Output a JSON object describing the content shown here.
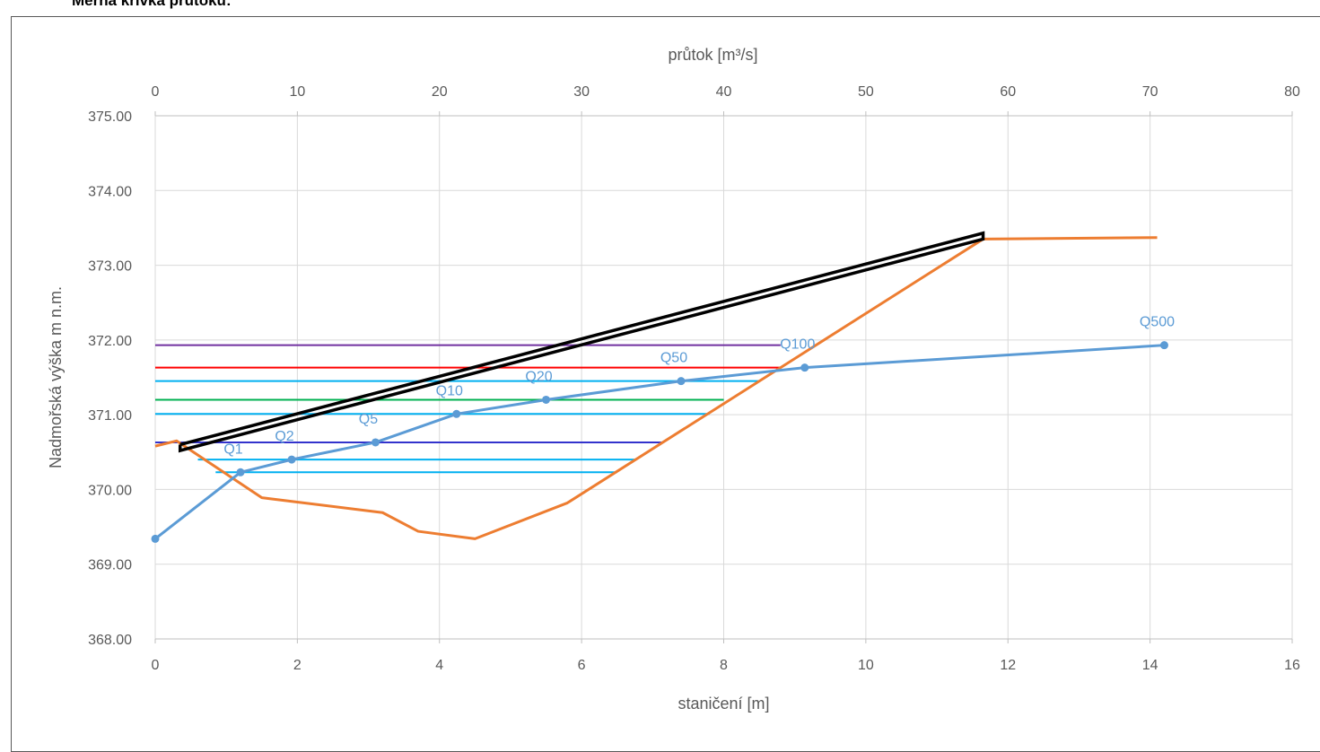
{
  "title": "Měrná křivka průtoku:",
  "chart_data": {
    "type": "line",
    "xlabel_bottom": "staničení [m]",
    "xlabel_top": "průtok [m³/s]",
    "ylabel": "Nadmořská výška m n.m.",
    "xlim_bottom": [
      0,
      16
    ],
    "xlim_top": [
      0,
      80
    ],
    "ylim": [
      368.0,
      375.0
    ],
    "xticks_bottom": [
      "0",
      "2",
      "4",
      "6",
      "8",
      "10",
      "12",
      "14",
      "16"
    ],
    "xticks_top": [
      "0",
      "10",
      "20",
      "30",
      "40",
      "50",
      "60",
      "70",
      "80"
    ],
    "yticks": [
      "368.00",
      "369.00",
      "370.00",
      "371.00",
      "372.00",
      "373.00",
      "374.00",
      "375.00"
    ],
    "grid": true,
    "colors": {
      "terrain": "#ed7d31",
      "rating": "#5b9bd5",
      "q500": "#7030a0",
      "q100": "#ff0000",
      "q50": "#00b0f0",
      "q20": "#00b050",
      "q10": "#00b0f0",
      "q5": "#3333cc",
      "q2": "#00b0f0",
      "q1": "#00b0f0",
      "structure": "#000000"
    },
    "terrain_profile": {
      "x": [
        0,
        0.3,
        1.5,
        3.2,
        3.7,
        4.5,
        5.8,
        11.65,
        14.1
      ],
      "y": [
        370.58,
        370.65,
        369.89,
        369.69,
        369.44,
        369.34,
        369.82,
        373.35,
        373.37
      ]
    },
    "rating_curve": {
      "x": [
        0,
        6,
        9.6,
        15.5,
        21.2,
        27.5,
        37.0,
        45.7,
        71.0
      ],
      "y": [
        369.34,
        370.23,
        370.4,
        370.63,
        371.01,
        371.2,
        371.45,
        371.63,
        371.93
      ],
      "labels": [
        "",
        "Q1",
        "Q2",
        "Q5",
        "Q10",
        "Q20",
        "Q50",
        "Q100",
        "Q500"
      ]
    },
    "water_levels": [
      {
        "level": 371.93,
        "x_from": 0.0,
        "x_to": 8.8,
        "color_key": "q500"
      },
      {
        "level": 371.63,
        "x_from": 0.0,
        "x_to": 8.8,
        "color_key": "q100"
      },
      {
        "level": 371.45,
        "x_from": 0.0,
        "x_to": 8.5,
        "color_key": "q50"
      },
      {
        "level": 371.2,
        "x_from": 0.0,
        "x_to": 8.0,
        "color_key": "q20"
      },
      {
        "level": 371.01,
        "x_from": 0.0,
        "x_to": 7.8,
        "color_key": "q10"
      },
      {
        "level": 370.63,
        "x_from": 0.0,
        "x_to": 7.15,
        "color_key": "q5"
      },
      {
        "level": 370.4,
        "x_from": 0.6,
        "x_to": 6.75,
        "color_key": "q2"
      },
      {
        "level": 370.23,
        "x_from": 0.85,
        "x_to": 6.5,
        "color_key": "q1"
      }
    ],
    "structure_outline": {
      "x": [
        0.35,
        11.65,
        11.65,
        0.35,
        0.35
      ],
      "y": [
        370.6,
        373.43,
        373.35,
        370.52,
        370.6
      ]
    }
  }
}
